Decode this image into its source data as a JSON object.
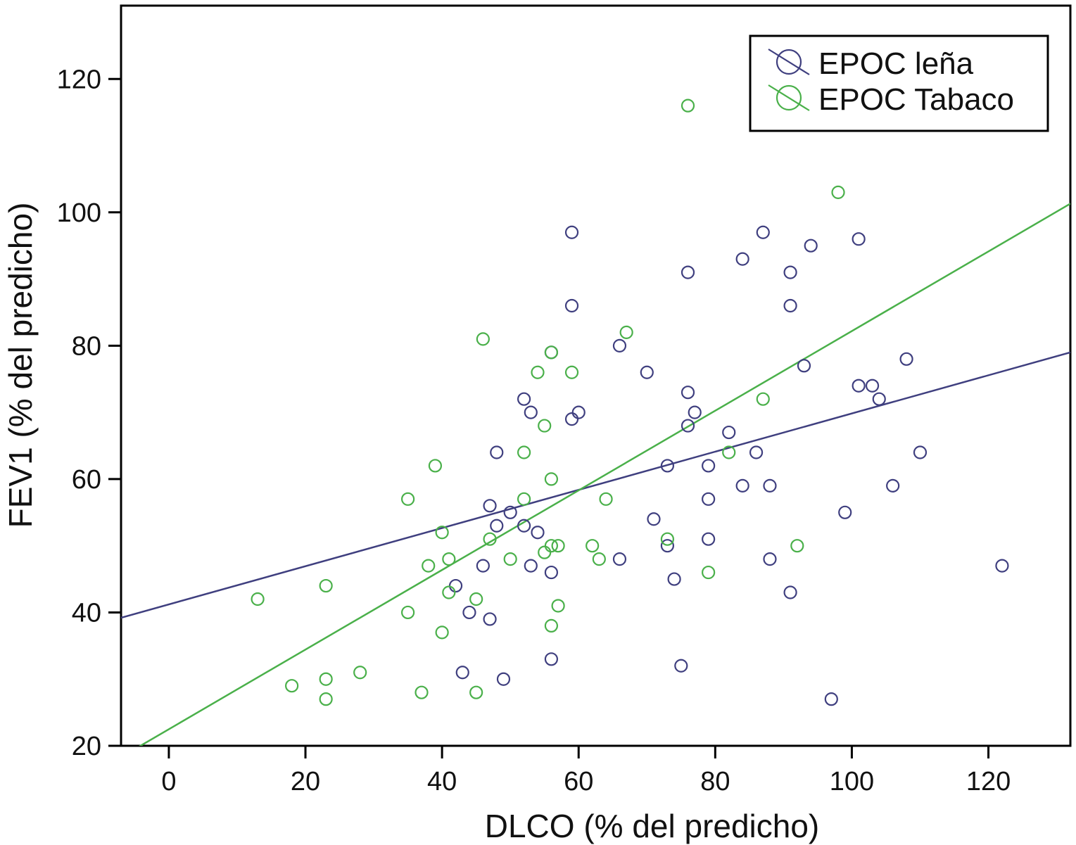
{
  "chart_data": {
    "type": "scatter",
    "xlabel": "DLCO (% del predicho)",
    "ylabel": "FEV1 (% del predicho)",
    "xlim": [
      -7,
      132
    ],
    "ylim": [
      20,
      131
    ],
    "xticks": [
      0,
      20,
      40,
      60,
      80,
      100,
      120
    ],
    "yticks": [
      20,
      40,
      60,
      80,
      100,
      120
    ],
    "legend_position": "top-right",
    "series": [
      {
        "name": "EPOC leña",
        "color": "#3f3f7f",
        "fit_line": [
          [
            -7,
            39.2
          ],
          [
            132,
            79.0
          ]
        ],
        "points": [
          [
            59,
            97
          ],
          [
            87,
            97
          ],
          [
            94,
            95
          ],
          [
            101,
            96
          ],
          [
            84,
            93
          ],
          [
            76,
            91
          ],
          [
            91,
            91
          ],
          [
            59,
            86
          ],
          [
            91,
            86
          ],
          [
            66,
            80
          ],
          [
            56,
            79
          ],
          [
            108,
            78
          ],
          [
            70,
            76
          ],
          [
            93,
            77
          ],
          [
            101,
            74
          ],
          [
            103,
            74
          ],
          [
            104,
            72
          ],
          [
            52,
            72
          ],
          [
            53,
            70
          ],
          [
            60,
            70
          ],
          [
            77,
            70
          ],
          [
            76,
            73
          ],
          [
            59,
            69
          ],
          [
            76,
            68
          ],
          [
            82,
            67
          ],
          [
            48,
            64
          ],
          [
            86,
            64
          ],
          [
            110,
            64
          ],
          [
            73,
            62
          ],
          [
            79,
            62
          ],
          [
            84,
            59
          ],
          [
            88,
            59
          ],
          [
            106,
            59
          ],
          [
            47,
            56
          ],
          [
            50,
            55
          ],
          [
            99,
            55
          ],
          [
            79,
            57
          ],
          [
            71,
            54
          ],
          [
            48,
            53
          ],
          [
            52,
            53
          ],
          [
            54,
            52
          ],
          [
            73,
            50
          ],
          [
            79,
            51
          ],
          [
            46,
            47
          ],
          [
            53,
            47
          ],
          [
            56,
            46
          ],
          [
            66,
            48
          ],
          [
            88,
            48
          ],
          [
            122,
            47
          ],
          [
            42,
            44
          ],
          [
            74,
            45
          ],
          [
            91,
            43
          ],
          [
            44,
            40
          ],
          [
            47,
            39
          ],
          [
            56,
            33
          ],
          [
            75,
            32
          ],
          [
            43,
            31
          ],
          [
            49,
            30
          ],
          [
            97,
            27
          ]
        ]
      },
      {
        "name": "EPOC Tabaco",
        "color": "#4ab04a",
        "fit_line": [
          [
            -5,
            19.5
          ],
          [
            132,
            101.3
          ]
        ],
        "points": [
          [
            76,
            116
          ],
          [
            98,
            103
          ],
          [
            46,
            81
          ],
          [
            67,
            82
          ],
          [
            56,
            79
          ],
          [
            54,
            76
          ],
          [
            59,
            76
          ],
          [
            55,
            68
          ],
          [
            87,
            72
          ],
          [
            39,
            62
          ],
          [
            52,
            64
          ],
          [
            82,
            64
          ],
          [
            35,
            57
          ],
          [
            52,
            57
          ],
          [
            56,
            60
          ],
          [
            64,
            57
          ],
          [
            40,
            52
          ],
          [
            47,
            51
          ],
          [
            73,
            51
          ],
          [
            55,
            49
          ],
          [
            56,
            50
          ],
          [
            57,
            50
          ],
          [
            62,
            50
          ],
          [
            92,
            50
          ],
          [
            38,
            47
          ],
          [
            41,
            48
          ],
          [
            50,
            48
          ],
          [
            63,
            48
          ],
          [
            79,
            46
          ],
          [
            13,
            42
          ],
          [
            23,
            44
          ],
          [
            41,
            43
          ],
          [
            45,
            42
          ],
          [
            35,
            40
          ],
          [
            57,
            41
          ],
          [
            40,
            37
          ],
          [
            56,
            38
          ],
          [
            18,
            29
          ],
          [
            23,
            30
          ],
          [
            28,
            31
          ],
          [
            23,
            27
          ],
          [
            37,
            28
          ],
          [
            45,
            28
          ]
        ]
      }
    ]
  }
}
